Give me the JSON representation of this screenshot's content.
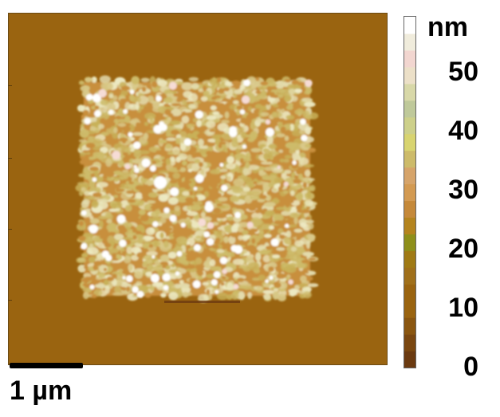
{
  "image": {
    "scale_bar_label": "1 µm",
    "colorbar_unit": "nm",
    "colorbar_ticks": [
      {
        "label": "0",
        "value": 0
      },
      {
        "label": "10",
        "value": 10
      },
      {
        "label": "20",
        "value": 20
      },
      {
        "label": "30",
        "value": 30
      },
      {
        "label": "40",
        "value": 40
      },
      {
        "label": "50",
        "value": 50
      }
    ],
    "colorbar_range": [
      -1,
      59
    ],
    "colors": {
      "substrate": "#9a6410",
      "mid": "#c88f3c",
      "granule_low": "#cdbb6a",
      "granule_high": "#ece9c2",
      "peak": "#ffffff"
    },
    "colormap": [
      "#6b3a10",
      "#7a4710",
      "#8a5610",
      "#9a6410",
      "#9a6410",
      "#a0701a",
      "#a07a14",
      "#8e8f1a",
      "#b4841e",
      "#c5893a",
      "#d39a52",
      "#d6a46a",
      "#cdbb6a",
      "#d8d470",
      "#cdd08a",
      "#bfc99a",
      "#d8d8a8",
      "#ece0c8",
      "#f2d6d0",
      "#f0ecdc",
      "#ffffff"
    ]
  }
}
